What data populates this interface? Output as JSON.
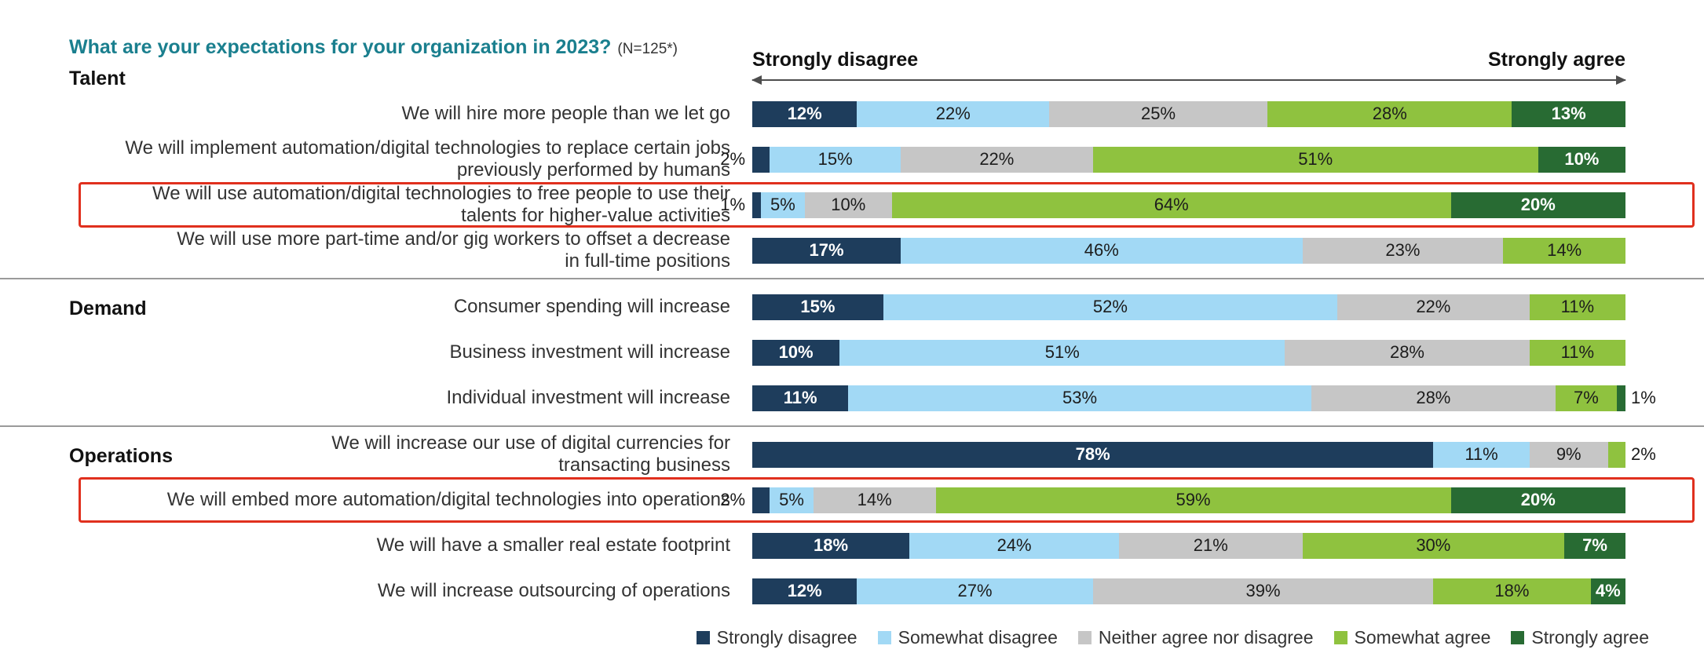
{
  "title": {
    "question": "What are your expectations for your organization in 2023?",
    "sample": "(N=125*)"
  },
  "scale_header": {
    "left": "Strongly disagree",
    "right": "Strongly agree"
  },
  "colors": {
    "strongly_disagree": "#1e3d5c",
    "somewhat_disagree": "#a2d9f5",
    "neither": "#c6c6c6",
    "somewhat_agree": "#8fc23f",
    "strongly_agree": "#286b33",
    "highlight_border": "#e0301e",
    "title_teal": "#1a7f8e"
  },
  "chart_data": {
    "type": "bar",
    "stacked": true,
    "orientation": "horizontal",
    "unit": "%",
    "xlim": [
      0,
      100
    ],
    "series_labels": [
      "Strongly disagree",
      "Somewhat disagree",
      "Neither agree nor disagree",
      "Somewhat agree",
      "Strongly agree"
    ],
    "segment_colors": [
      "#1e3d5c",
      "#a2d9f5",
      "#c6c6c6",
      "#8fc23f",
      "#286b33"
    ],
    "dark_text_segments": [
      0,
      4
    ],
    "sections": [
      {
        "name": "Talent",
        "rows": [
          {
            "label": "We will hire more people than we let go",
            "values": [
              12,
              22,
              25,
              28,
              13
            ],
            "highlight": false
          },
          {
            "label": "We will implement automation/digital technologies to replace certain jobs\npreviously performed by humans",
            "values": [
              2,
              15,
              22,
              51,
              10
            ],
            "highlight": false
          },
          {
            "label": "We will use automation/digital technologies to free people to use their\ntalents for higher-value activities",
            "values": [
              1,
              5,
              10,
              64,
              20
            ],
            "highlight": true
          },
          {
            "label": "We will use more part-time and/or gig workers to offset a decrease\nin full-time positions",
            "values": [
              17,
              46,
              23,
              14,
              0
            ],
            "highlight": false
          }
        ]
      },
      {
        "name": "Demand",
        "rows": [
          {
            "label": "Consumer spending will increase",
            "values": [
              15,
              52,
              22,
              11,
              0
            ],
            "highlight": false
          },
          {
            "label": "Business investment will increase",
            "values": [
              10,
              51,
              28,
              11,
              0
            ],
            "highlight": false
          },
          {
            "label": "Individual investment will increase",
            "values": [
              11,
              53,
              28,
              7,
              1
            ],
            "highlight": false
          }
        ]
      },
      {
        "name": "Operations",
        "rows": [
          {
            "label": "We will increase our use of digital currencies for\ntransacting business",
            "values": [
              78,
              11,
              9,
              2,
              0
            ],
            "highlight": false
          },
          {
            "label": "We will embed more automation/digital technologies into operations",
            "values": [
              2,
              5,
              14,
              59,
              20
            ],
            "highlight": true
          },
          {
            "label": "We will have a smaller real estate footprint",
            "values": [
              18,
              24,
              21,
              30,
              7
            ],
            "highlight": false
          },
          {
            "label": "We will increase outsourcing of operations",
            "values": [
              12,
              27,
              39,
              18,
              4
            ],
            "highlight": false
          }
        ]
      }
    ]
  }
}
